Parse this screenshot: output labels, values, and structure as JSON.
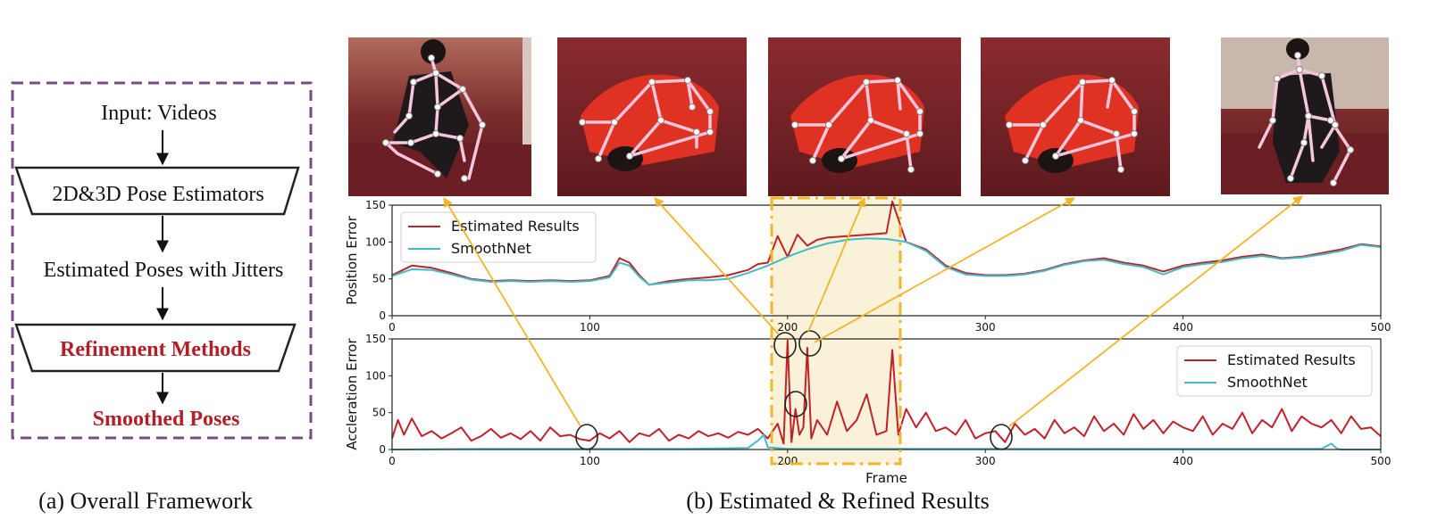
{
  "framework": {
    "caption": "(a) Overall Framework",
    "steps": {
      "input": "Input: Videos",
      "estimators": "2D&3D Pose Estimators",
      "jitters": "Estimated Poses with Jitters",
      "refinement": "Refinement Methods",
      "smoothed": "Smoothed Poses"
    },
    "colors": {
      "border": "#7a4a86",
      "highlight": "#b02026",
      "text": "#111111"
    }
  },
  "results": {
    "caption": "(b) Estimated & Refined Results",
    "thumbnails": [
      {
        "name": "pose-frame-1",
        "pose": "crouch-side"
      },
      {
        "name": "pose-frame-2",
        "pose": "bent-over"
      },
      {
        "name": "pose-frame-3",
        "pose": "bent-over"
      },
      {
        "name": "pose-frame-4",
        "pose": "bent-over"
      },
      {
        "name": "pose-frame-5",
        "pose": "standing"
      }
    ],
    "colors": {
      "estimated": "#c0222c",
      "smoothnet": "#3fbcc8",
      "highlight_fill": "#faf2d8",
      "highlight_border": "#f2b428",
      "arrow": "#f2b428",
      "skeleton": "#f6c6dd"
    }
  },
  "chart_data": [
    {
      "type": "line",
      "ylabel": "Position Error",
      "xlim": [
        0,
        500
      ],
      "ylim": [
        0,
        150
      ],
      "xticks": [
        "0",
        "100",
        "200",
        "300",
        "400",
        "500"
      ],
      "yticks": [
        "0",
        "50",
        "100",
        "150"
      ],
      "legend": {
        "position": "top-left",
        "entries": [
          "Estimated Results",
          "SmoothNet"
        ]
      },
      "series": [
        {
          "name": "Estimated Results",
          "x": [
            0,
            10,
            20,
            30,
            40,
            50,
            60,
            70,
            80,
            90,
            100,
            110,
            115,
            120,
            125,
            130,
            140,
            150,
            160,
            170,
            180,
            185,
            190,
            195,
            200,
            205,
            210,
            215,
            220,
            230,
            240,
            250,
            253,
            260,
            270,
            280,
            290,
            300,
            310,
            320,
            330,
            340,
            350,
            360,
            370,
            380,
            390,
            400,
            410,
            420,
            430,
            440,
            450,
            460,
            470,
            480,
            490,
            500
          ],
          "values": [
            55,
            68,
            65,
            58,
            50,
            47,
            48,
            47,
            48,
            47,
            48,
            54,
            78,
            72,
            55,
            42,
            47,
            50,
            52,
            55,
            62,
            70,
            72,
            108,
            80,
            110,
            95,
            103,
            106,
            108,
            110,
            112,
            155,
            100,
            90,
            68,
            58,
            55,
            55,
            57,
            62,
            70,
            75,
            78,
            72,
            68,
            60,
            68,
            72,
            75,
            80,
            83,
            78,
            80,
            85,
            90,
            97,
            94
          ]
        },
        {
          "name": "SmoothNet",
          "x": [
            0,
            10,
            20,
            30,
            40,
            50,
            60,
            70,
            80,
            90,
            100,
            110,
            115,
            120,
            125,
            130,
            140,
            150,
            160,
            170,
            180,
            190,
            200,
            210,
            220,
            230,
            240,
            250,
            260,
            270,
            280,
            290,
            300,
            310,
            320,
            330,
            340,
            350,
            360,
            370,
            380,
            390,
            400,
            410,
            420,
            430,
            440,
            450,
            460,
            470,
            480,
            490,
            500
          ],
          "values": [
            54,
            63,
            62,
            56,
            49,
            46,
            47,
            46,
            47,
            46,
            47,
            52,
            72,
            68,
            53,
            42,
            45,
            48,
            48,
            50,
            58,
            68,
            80,
            90,
            98,
            103,
            105,
            104,
            100,
            88,
            66,
            56,
            54,
            54,
            56,
            61,
            69,
            74,
            76,
            70,
            66,
            56,
            66,
            70,
            73,
            78,
            81,
            77,
            79,
            83,
            88,
            96,
            93
          ]
        }
      ]
    },
    {
      "type": "line",
      "xlabel": "Frame",
      "ylabel": "Accleration Error",
      "xlim": [
        0,
        500
      ],
      "ylim": [
        0,
        150
      ],
      "xticks": [
        "0",
        "100",
        "200",
        "300",
        "400",
        "500"
      ],
      "yticks": [
        "0",
        "50",
        "100",
        "150"
      ],
      "legend": {
        "position": "top-right",
        "entries": [
          "Estimated Results",
          "SmoothNet"
        ]
      },
      "series": [
        {
          "name": "Estimated Results",
          "x": [
            0,
            3,
            6,
            10,
            15,
            20,
            25,
            30,
            35,
            40,
            45,
            50,
            55,
            60,
            65,
            70,
            75,
            80,
            85,
            90,
            95,
            100,
            105,
            110,
            115,
            120,
            125,
            130,
            135,
            140,
            145,
            150,
            155,
            160,
            165,
            170,
            175,
            180,
            185,
            190,
            195,
            198,
            200,
            202,
            204,
            206,
            208,
            210,
            212,
            215,
            220,
            225,
            230,
            235,
            240,
            245,
            250,
            253,
            256,
            260,
            265,
            270,
            275,
            280,
            285,
            290,
            295,
            300,
            305,
            310,
            315,
            320,
            325,
            330,
            335,
            340,
            345,
            350,
            355,
            360,
            365,
            370,
            375,
            380,
            385,
            390,
            395,
            400,
            405,
            410,
            415,
            420,
            425,
            430,
            435,
            440,
            445,
            450,
            455,
            460,
            465,
            470,
            475,
            480,
            485,
            490,
            495,
            500
          ],
          "values": [
            15,
            40,
            20,
            42,
            18,
            25,
            15,
            22,
            30,
            12,
            18,
            28,
            16,
            22,
            14,
            25,
            12,
            30,
            18,
            20,
            14,
            12,
            22,
            15,
            25,
            10,
            22,
            18,
            28,
            12,
            20,
            15,
            25,
            18,
            22,
            16,
            24,
            20,
            28,
            15,
            35,
            8,
            148,
            10,
            55,
            20,
            30,
            138,
            15,
            40,
            20,
            65,
            25,
            40,
            75,
            20,
            25,
            135,
            20,
            55,
            30,
            50,
            25,
            30,
            20,
            40,
            15,
            22,
            25,
            10,
            35,
            20,
            28,
            15,
            40,
            22,
            30,
            18,
            45,
            25,
            35,
            20,
            48,
            28,
            40,
            22,
            38,
            30,
            25,
            45,
            20,
            35,
            28,
            50,
            22,
            40,
            30,
            55,
            25,
            45,
            35,
            30,
            40,
            22,
            45,
            28,
            30,
            18
          ]
        },
        {
          "name": "SmoothNet",
          "x": [
            0,
            50,
            100,
            150,
            180,
            185,
            188,
            190,
            200,
            250,
            300,
            400,
            470,
            475,
            478,
            480,
            500
          ],
          "values": [
            0,
            1,
            1,
            1,
            2,
            12,
            20,
            3,
            1,
            1,
            1,
            1,
            1,
            8,
            1,
            0,
            0
          ]
        }
      ]
    }
  ]
}
